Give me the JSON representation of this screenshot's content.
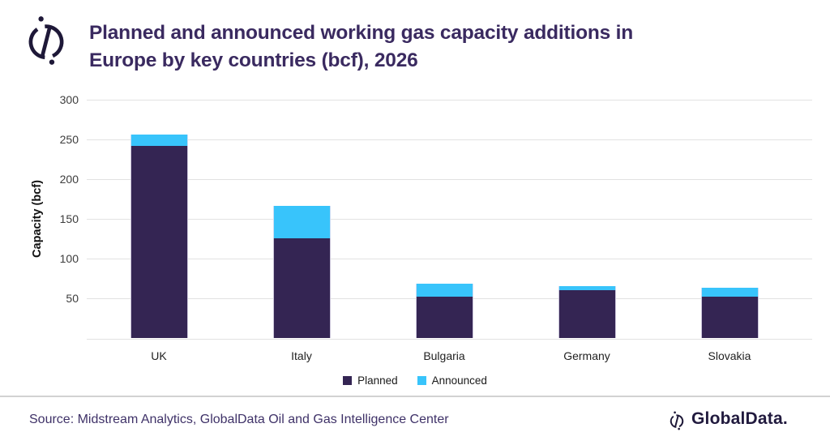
{
  "header": {
    "title_line1": "Planned and announced working gas capacity additions in",
    "title_line2": "Europe by key countries (bcf), 2026",
    "title_color": "#3a2a60"
  },
  "chart_data": {
    "type": "bar",
    "stacked": true,
    "title": "Planned and announced working gas capacity additions in Europe by key countries (bcf), 2026",
    "categories": [
      "UK",
      "Italy",
      "Bulgaria",
      "Germany",
      "Slovakia"
    ],
    "series": [
      {
        "name": "Planned",
        "color": "#342553",
        "values": [
          242,
          126,
          52,
          61,
          52
        ]
      },
      {
        "name": "Announced",
        "color": "#38C4FB",
        "values": [
          14,
          40,
          17,
          5,
          12
        ]
      }
    ],
    "stacked_totals": [
      256,
      166,
      69,
      66,
      64
    ],
    "xlabel": "",
    "ylabel": "Capacity (bcf)",
    "ylim": [
      0,
      300
    ],
    "yticks": [
      50,
      100,
      150,
      200,
      250,
      300
    ],
    "grid": true,
    "gridline_color": "#e2e2e2",
    "legend_position": "bottom"
  },
  "footer": {
    "source": "Source: Midstream Analytics, GlobalData Oil and Gas Intelligence Center",
    "brand_text": "GlobalData."
  }
}
